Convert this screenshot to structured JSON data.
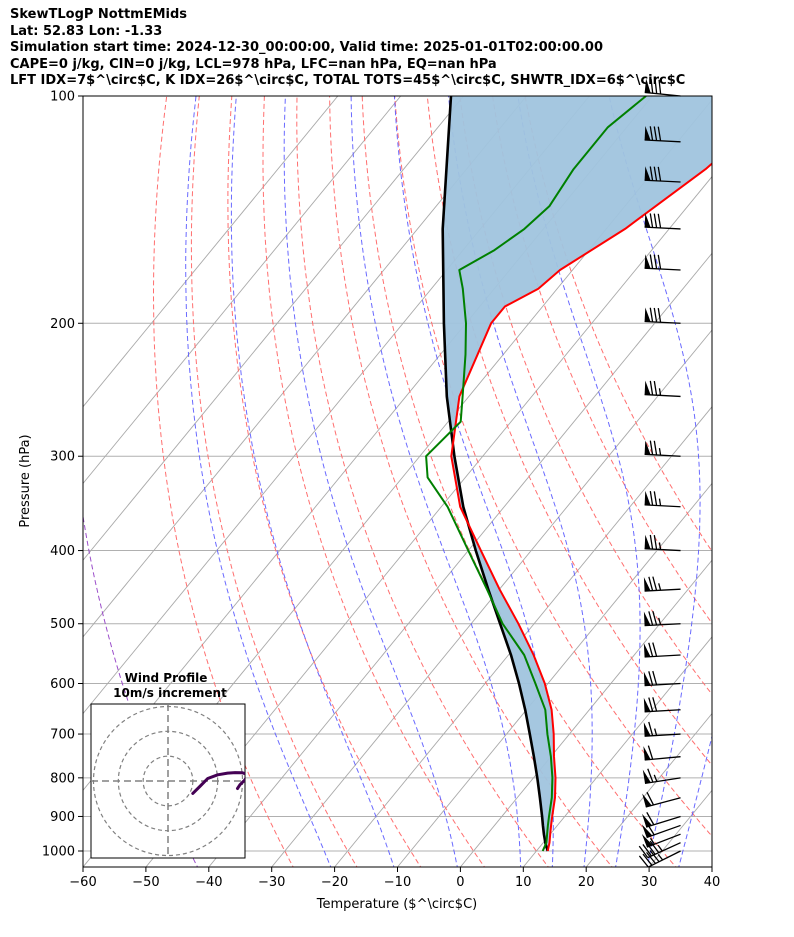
{
  "title_lines": [
    "SkewTLogP NottmEMids",
    "Lat: 52.83   Lon: -1.33",
    "Simulation start time: 2024-12-30_00:00:00, Valid time: 2025-01-01T02:00:00.00",
    "CAPE=0 j/kg, CIN=0 j/kg, LCL=978 hPa, LFC=nan hPa, EQ=nan hPa",
    "LFT IDX=7$^\\circ$C, K IDX=26$^\\circ$C, TOTAL TOTS=45$^\\circ$C, SHWTR_IDX=6$^\\circ$C"
  ],
  "chart_data": {
    "type": "skewt",
    "xlabel": "Temperature ($^\\circ$C)",
    "ylabel": "Pressure (hPa)",
    "xlim": [
      -60,
      40
    ],
    "ylim": [
      1050,
      100
    ],
    "x_ticks": [
      -60,
      -50,
      -40,
      -30,
      -20,
      -10,
      0,
      10,
      20,
      30,
      40
    ],
    "x_tick_labels": [
      "−60",
      "−50",
      "−40",
      "−30",
      "−20",
      "−10",
      "0",
      "10",
      "20",
      "30",
      "40"
    ],
    "y_ticks": [
      1000,
      900,
      800,
      700,
      600,
      500,
      400,
      300,
      200,
      100
    ],
    "y_tick_labels": [
      "1000",
      "900",
      "800",
      "700",
      "600",
      "500",
      "400",
      "300",
      "200",
      "100"
    ],
    "temperature": {
      "name": "Temperature",
      "color": "#ff0000",
      "pressure": [
        1000,
        975,
        950,
        925,
        900,
        850,
        800,
        750,
        700,
        650,
        600,
        550,
        500,
        450,
        400,
        350,
        300,
        250,
        200,
        190,
        180,
        170,
        150,
        125,
        100
      ],
      "values": [
        11.8,
        11.0,
        10.0,
        9.0,
        8.0,
        6.0,
        3.5,
        0.5,
        -2.5,
        -6.0,
        -10.5,
        -16.0,
        -22.5,
        -30.0,
        -38.0,
        -47.0,
        -55.0,
        -61.5,
        -66.0,
        -66.0,
        -63.0,
        -62.0,
        -57.0,
        -52.0,
        -48.0
      ]
    },
    "dewpoint": {
      "name": "Dewpoint",
      "color": "#008000",
      "pressure": [
        1000,
        975,
        950,
        925,
        900,
        850,
        800,
        750,
        700,
        650,
        600,
        550,
        500,
        450,
        400,
        350,
        320,
        300,
        270,
        250,
        220,
        200,
        180,
        170,
        160,
        150,
        140,
        125,
        110,
        100
      ],
      "values": [
        11.0,
        10.5,
        9.5,
        8.5,
        7.5,
        5.5,
        3.0,
        0.0,
        -3.5,
        -7.0,
        -12.0,
        -17.5,
        -25.0,
        -32.0,
        -40.0,
        -49.0,
        -56.0,
        -59.0,
        -58.0,
        -61.0,
        -66.0,
        -70.0,
        -75.0,
        -78.0,
        -75.0,
        -73.0,
        -72.0,
        -73.0,
        -73.0,
        -71.0
      ]
    },
    "parcel": {
      "name": "Parcel profile",
      "color": "#000000",
      "pressure": [
        1000,
        978,
        950,
        925,
        900,
        850,
        800,
        750,
        700,
        650,
        600,
        550,
        500,
        450,
        400,
        350,
        300,
        250,
        200,
        150,
        100
      ],
      "values": [
        11.8,
        10.5,
        9.0,
        7.7,
        6.4,
        3.6,
        0.6,
        -2.7,
        -6.3,
        -10.2,
        -14.6,
        -19.6,
        -25.4,
        -31.8,
        -38.8,
        -46.5,
        -54.5,
        -63.5,
        -73.5,
        -86.0,
        -102.0
      ]
    },
    "shading": {
      "name": "CIN region",
      "color": "#a0c4de"
    },
    "isotherms": {
      "color": "#a9a9a9",
      "values": [
        -120,
        -110,
        -100,
        -90,
        -80,
        -70,
        -60,
        -50,
        -40,
        -30,
        -20,
        -10,
        0,
        10,
        20,
        30,
        40
      ]
    },
    "dry_adiabats": {
      "color": "#ff6f6f",
      "theta_c": [
        -30,
        -20,
        -10,
        0,
        10,
        20,
        30,
        40,
        50,
        60,
        70,
        80
      ]
    },
    "moist_adiabats": {
      "color": "#5a5aff",
      "theta_start_c": [
        -20,
        -10,
        0,
        10,
        15,
        20,
        25,
        30,
        35
      ]
    },
    "mixing_ratio_line": {
      "color": "#9b4dca"
    },
    "wind_barbs": {
      "x_position_c": 35,
      "pressure": [
        1000,
        975,
        950,
        925,
        900,
        850,
        800,
        750,
        700,
        650,
        600,
        550,
        500,
        450,
        400,
        350,
        300,
        250,
        200,
        170,
        150,
        130,
        115,
        100
      ],
      "u_ms": [
        20,
        22,
        26,
        28,
        29,
        30,
        32,
        32,
        34,
        35,
        35,
        35,
        38,
        38,
        38,
        38,
        38,
        38,
        40,
        40,
        40,
        40,
        40,
        40
      ],
      "v_ms": [
        10,
        10,
        10,
        10,
        9,
        8,
        5,
        3,
        2,
        2,
        2,
        2,
        2,
        2,
        -2,
        -2,
        -2,
        -2,
        -2,
        -2,
        -2,
        -2,
        -2,
        -4
      ]
    },
    "inset": {
      "title_lines": [
        "Wind Profile",
        "10m/s increment"
      ],
      "rings_ms": [
        10,
        20,
        30
      ],
      "lim_ms": 31,
      "hodograph_u": [
        10,
        13,
        16,
        20,
        24,
        27,
        30,
        32,
        31,
        29,
        28
      ],
      "hodograph_v": [
        -5,
        -2,
        1,
        2.5,
        3.2,
        3.4,
        3.3,
        2.6,
        0.5,
        -1.5,
        -3
      ],
      "color": "#440154"
    }
  }
}
